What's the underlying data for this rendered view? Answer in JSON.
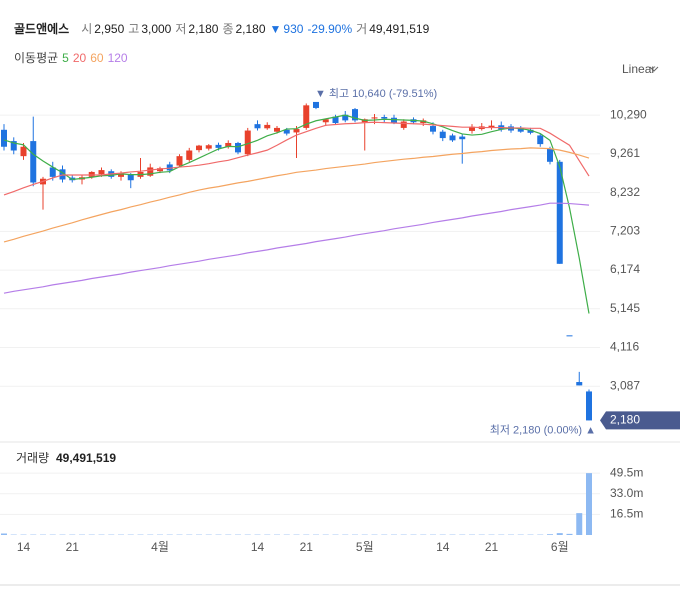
{
  "chart_data": {
    "type": "candlestick",
    "title": "골드앤에스",
    "summary": [
      {
        "key": "시",
        "text": "2,950"
      },
      {
        "key": "고",
        "text": "3,000"
      },
      {
        "key": "저",
        "text": "2,180"
      },
      {
        "key": "종",
        "text": "2,180"
      }
    ],
    "change_arrow": "▼",
    "change": "930",
    "change_pct": "-29.90%",
    "volume_key": "거",
    "volume_total": "49,491,519",
    "ma_label": "이동평균",
    "scale_label": "Linear",
    "categories": [
      null,
      null,
      "14",
      null,
      null,
      null,
      null,
      "21",
      null,
      null,
      null,
      null,
      null,
      null,
      null,
      null,
      "4월",
      null,
      null,
      null,
      null,
      null,
      null,
      null,
      null,
      null,
      "14",
      null,
      null,
      null,
      null,
      "21",
      null,
      null,
      null,
      null,
      null,
      "5월",
      null,
      null,
      null,
      null,
      null,
      null,
      null,
      "14",
      null,
      null,
      null,
      null,
      "21",
      null,
      null,
      null,
      null,
      null,
      null,
      "6월",
      null,
      null,
      null
    ],
    "open": [
      9900,
      9600,
      9200,
      9600,
      8450,
      8900,
      8850,
      8630,
      8580,
      8650,
      8720,
      8800,
      8650,
      8700,
      8650,
      8680,
      8800,
      8980,
      8950,
      9100,
      9360,
      9400,
      9500,
      9450,
      9550,
      9250,
      10050,
      9940,
      9850,
      9900,
      9830,
      9950,
      10640,
      10100,
      10250,
      10300,
      10450,
      10100,
      10200,
      10240,
      10220,
      9950,
      10180,
      10080,
      10000,
      9850,
      9750,
      9720,
      9870,
      9920,
      9950,
      10020,
      9990,
      9950,
      9900,
      9750,
      9400,
      9050,
      4440,
      3200,
      2950
    ],
    "high": [
      10050,
      9700,
      9550,
      10250,
      8650,
      9050,
      8950,
      8700,
      8700,
      8800,
      8900,
      8850,
      8800,
      8750,
      9150,
      9000,
      8920,
      9050,
      9250,
      9420,
      9500,
      9520,
      9560,
      9620,
      9580,
      9950,
      10150,
      10100,
      10000,
      9950,
      10000,
      10600,
      10640,
      10200,
      10300,
      10400,
      10480,
      10200,
      10320,
      10300,
      10300,
      10180,
      10230,
      10200,
      10100,
      9900,
      9800,
      9800,
      10050,
      10080,
      10150,
      10120,
      10050,
      10000,
      9950,
      9800,
      9450,
      9100,
      4440,
      3470,
      3000
    ],
    "low": [
      9350,
      9250,
      9100,
      8400,
      7780,
      8550,
      8500,
      8500,
      8450,
      8600,
      8650,
      8600,
      8550,
      8350,
      8600,
      8650,
      8750,
      8750,
      8900,
      9050,
      9300,
      9350,
      9350,
      9400,
      9250,
      9200,
      9880,
      9900,
      9800,
      9750,
      9150,
      9900,
      10450,
      10000,
      10050,
      10100,
      10100,
      9350,
      10050,
      10100,
      10050,
      9900,
      10050,
      10000,
      9780,
      9600,
      9580,
      9000,
      9800,
      9880,
      9900,
      9850,
      9820,
      9820,
      9780,
      9450,
      8980,
      6340,
      4440,
      3110,
      2180
    ],
    "close": [
      9450,
      9350,
      9450,
      8500,
      8600,
      8650,
      8580,
      8560,
      8640,
      8780,
      8830,
      8650,
      8750,
      8560,
      8780,
      8900,
      8880,
      8820,
      9200,
      9350,
      9480,
      9490,
      9420,
      9550,
      9300,
      9880,
      9940,
      10030,
      9950,
      9800,
      9920,
      10550,
      10480,
      10180,
      10080,
      10150,
      10150,
      10180,
      10230,
      10200,
      10080,
      10120,
      10100,
      10150,
      9850,
      9680,
      9620,
      9650,
      9980,
      9990,
      10010,
      9910,
      9880,
      9850,
      9820,
      9520,
      9050,
      6340,
      4440,
      3110,
      2180
    ],
    "up_color": "#e8412c",
    "down_color": "#1f73e0",
    "ylim": [
      1660,
      11090
    ],
    "yticks": [
      {
        "value": 10290,
        "label": "10,290"
      },
      {
        "value": 9261,
        "label": "9,261"
      },
      {
        "value": 8232,
        "label": "8,232"
      },
      {
        "value": 7203,
        "label": "7,203"
      },
      {
        "value": 6174,
        "label": "6,174"
      },
      {
        "value": 5145,
        "label": "5,145"
      },
      {
        "value": 4116,
        "label": "4,116"
      },
      {
        "value": 3087,
        "label": "3,087"
      }
    ],
    "grid": true,
    "moving_averages": [
      {
        "name": "5",
        "color": "#3fae49",
        "values": [
          9630,
          9550,
          9500,
          9250,
          9070,
          8910,
          8760,
          8580,
          8610,
          8640,
          8680,
          8690,
          8730,
          8710,
          8710,
          8730,
          8770,
          8790,
          8920,
          9030,
          9150,
          9270,
          9390,
          9460,
          9450,
          9530,
          9620,
          9740,
          9820,
          9920,
          9930,
          10050,
          10140,
          10190,
          10240,
          10290,
          10210,
          10150,
          10160,
          10180,
          10170,
          10160,
          10150,
          10130,
          10060,
          9980,
          9880,
          9790,
          9760,
          9780,
          9850,
          9910,
          9950,
          9930,
          9890,
          9800,
          9620,
          8920,
          7830,
          6490,
          5020
        ]
      },
      {
        "name": "20",
        "color": "#f06a6a",
        "values": [
          8170,
          8260,
          8360,
          8450,
          8530,
          8620,
          8700,
          8700,
          8700,
          8700,
          8700,
          8730,
          8750,
          8780,
          8800,
          8830,
          8860,
          8880,
          8910,
          8930,
          8960,
          9000,
          9050,
          9090,
          9160,
          9230,
          9290,
          9360,
          9490,
          9630,
          9760,
          9850,
          9940,
          10020,
          10040,
          10060,
          10070,
          10090,
          10100,
          10090,
          10080,
          10070,
          10060,
          10050,
          10030,
          10010,
          9990,
          9970,
          9970,
          9960,
          9960,
          9960,
          9950,
          9950,
          9940,
          9940,
          9810,
          9650,
          9490,
          9080,
          8670
        ]
      },
      {
        "name": "60",
        "color": "#f4a460",
        "values": [
          6920,
          6990,
          7070,
          7140,
          7210,
          7290,
          7360,
          7430,
          7510,
          7580,
          7650,
          7720,
          7780,
          7850,
          7910,
          7980,
          8040,
          8110,
          8170,
          8240,
          8300,
          8350,
          8390,
          8440,
          8490,
          8530,
          8580,
          8630,
          8680,
          8720,
          8770,
          8800,
          8830,
          8870,
          8900,
          8930,
          8960,
          8990,
          9030,
          9060,
          9090,
          9120,
          9140,
          9170,
          9190,
          9220,
          9250,
          9270,
          9300,
          9320,
          9350,
          9370,
          9390,
          9400,
          9420,
          9410,
          9400,
          9360,
          9300,
          9230,
          9150
        ]
      },
      {
        "name": "120",
        "color": "#b57ee8",
        "values": [
          5560,
          5610,
          5650,
          5690,
          5730,
          5780,
          5820,
          5860,
          5900,
          5950,
          5990,
          6030,
          6070,
          6120,
          6160,
          6200,
          6240,
          6290,
          6330,
          6370,
          6410,
          6460,
          6500,
          6540,
          6580,
          6630,
          6670,
          6710,
          6760,
          6800,
          6840,
          6880,
          6930,
          6970,
          7010,
          7050,
          7100,
          7140,
          7180,
          7220,
          7270,
          7310,
          7350,
          7390,
          7440,
          7480,
          7520,
          7560,
          7610,
          7650,
          7690,
          7730,
          7780,
          7820,
          7860,
          7900,
          7950,
          7950,
          7940,
          7920,
          7900
        ]
      }
    ],
    "high_note": {
      "arrow": "▼",
      "label": "최고",
      "text": "10,640 (-79.51%)"
    },
    "low_note": {
      "arrow": "▲",
      "label": "최저",
      "text": "2,180 (0.00%)"
    },
    "last_price_label": "2,180",
    "volume": {
      "label": "거래량",
      "total": "49,491,519",
      "color": "#8db9f2",
      "values": [
        1200000,
        300000,
        300000,
        300000,
        300000,
        300000,
        300000,
        300000,
        300000,
        300000,
        300000,
        300000,
        300000,
        300000,
        300000,
        300000,
        300000,
        300000,
        300000,
        300000,
        300000,
        300000,
        300000,
        300000,
        300000,
        300000,
        300000,
        300000,
        300000,
        300000,
        300000,
        300000,
        300000,
        300000,
        300000,
        300000,
        300000,
        300000,
        300000,
        300000,
        300000,
        300000,
        300000,
        300000,
        300000,
        300000,
        300000,
        300000,
        300000,
        300000,
        300000,
        300000,
        300000,
        300000,
        300000,
        300000,
        600000,
        1500000,
        900000,
        17500000,
        49491519
      ],
      "ylim": [
        0,
        72000000
      ],
      "yticks": [
        {
          "value": 49500000,
          "label": "49.5m"
        },
        {
          "value": 33000000,
          "label": "33.0m"
        },
        {
          "value": 16500000,
          "label": "16.5m"
        }
      ]
    }
  }
}
